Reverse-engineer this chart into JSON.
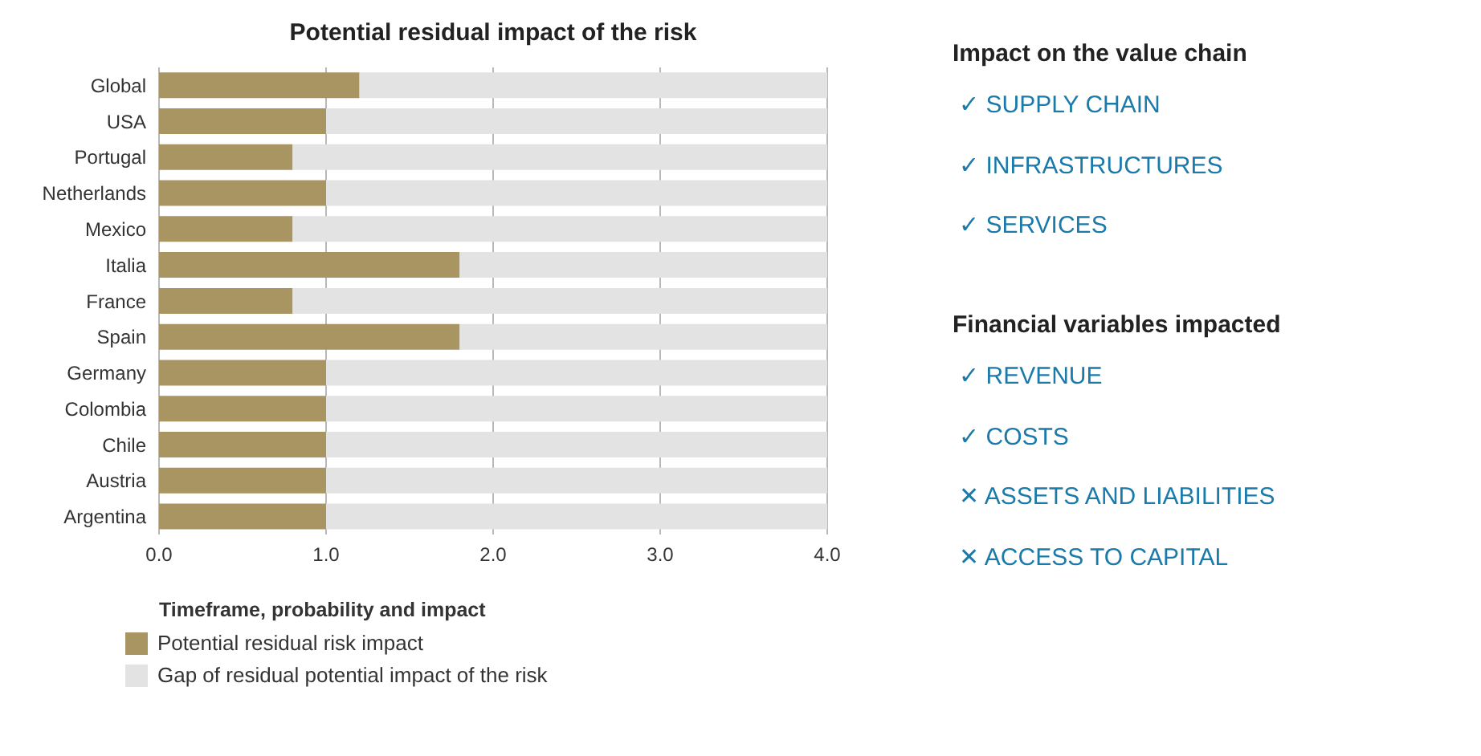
{
  "chart_data": [
    {
      "type": "bar",
      "orientation": "horizontal",
      "stacked": true,
      "title": "Potential residual impact of the risk",
      "categories": [
        "Global",
        "USA",
        "Portugal",
        "Netherlands",
        "Mexico",
        "Italia",
        "France",
        "Spain",
        "Germany",
        "Colombia",
        "Chile",
        "Austria",
        "Argentina"
      ],
      "series": [
        {
          "name": "Potential residual risk impact",
          "color": "#a89562",
          "values": [
            1.2,
            1.0,
            0.8,
            1.0,
            0.8,
            1.8,
            0.8,
            1.8,
            1.0,
            1.0,
            1.0,
            1.0,
            1.0
          ]
        },
        {
          "name": "Gap of residual potential impact of the risk",
          "color": "#e3e3e3",
          "values": [
            2.8,
            3.0,
            3.2,
            3.0,
            3.2,
            2.2,
            3.2,
            2.2,
            3.0,
            3.0,
            3.0,
            3.0,
            3.0
          ]
        }
      ],
      "xlim": [
        0,
        4
      ],
      "xticks": [
        {
          "value": 0,
          "label": "0.0"
        },
        {
          "value": 1,
          "label": "1.0"
        },
        {
          "value": 2,
          "label": "2.0"
        },
        {
          "value": 3,
          "label": "3.0"
        },
        {
          "value": 4,
          "label": "4.0"
        }
      ],
      "grid": "x",
      "legend": "bottom",
      "legend_title": "Timeframe, probability and impact"
    },
    {
      "type": "other",
      "title": "Impact on the value chain",
      "annotations": [
        "✓ SUPPLY CHAIN",
        "✓ INFRASTRUCTURES",
        "✓ SERVICES"
      ]
    },
    {
      "type": "other",
      "title": "Financial variables impacted",
      "annotations": [
        "✓ REVENUE",
        "✓ COSTS",
        "✕ ASSETS AND LIABILITIES",
        "✕ ACCESS TO CAPITAL"
      ]
    }
  ]
}
